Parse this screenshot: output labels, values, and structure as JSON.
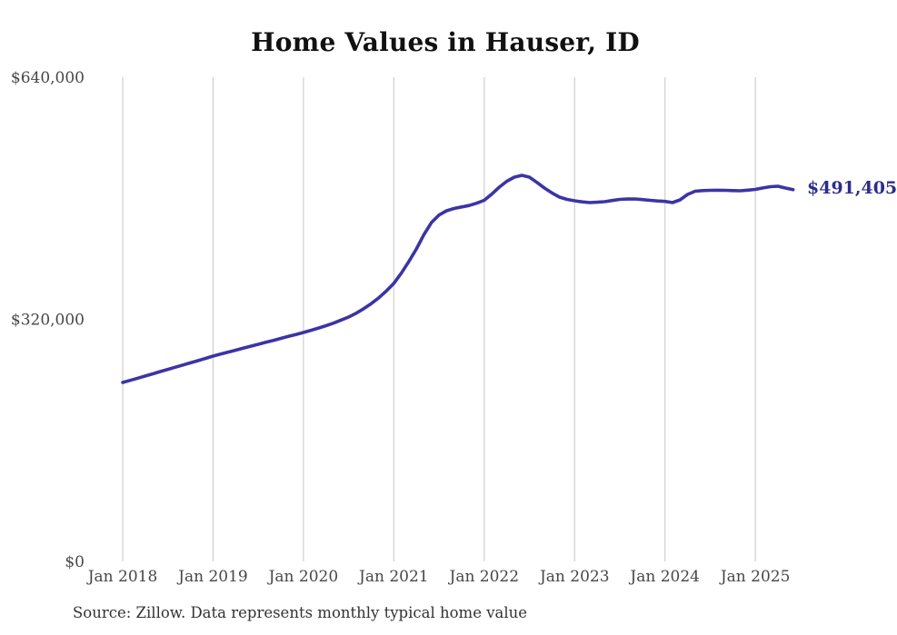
{
  "title": "Home Values in Hauser, ID",
  "source_note": "Source: Zillow. Data represents monthly typical home value",
  "colors": {
    "line": "#3c34a5",
    "end_label": "#2d2c8c",
    "grid": "#cfcfcf",
    "axis_text": "#474747",
    "title_text": "#111111",
    "source_text": "#333333",
    "background": "#ffffff"
  },
  "chart_data": {
    "type": "line",
    "title": "Home Values in Hauser, ID",
    "xlabel": "",
    "ylabel": "",
    "ylim": [
      0,
      640000
    ],
    "grid": "vertical-only",
    "legend": "none",
    "interval": "monthly",
    "x_tick_labels": [
      "Jan 2018",
      "Jan 2019",
      "Jan 2020",
      "Jan 2021",
      "Jan 2022",
      "Jan 2023",
      "Jan 2024",
      "Jan 2025"
    ],
    "y_ticks": [
      {
        "value": 0,
        "label": "$0"
      },
      {
        "value": 320000,
        "label": "$320,000"
      },
      {
        "value": 640000,
        "label": "$640,000"
      }
    ],
    "annotation": {
      "text": "$491,405",
      "x": "2025-06",
      "value": 491405
    },
    "series": [
      {
        "name": "Typical home value",
        "x": [
          "2018-01",
          "2018-02",
          "2018-03",
          "2018-04",
          "2018-05",
          "2018-06",
          "2018-07",
          "2018-08",
          "2018-09",
          "2018-10",
          "2018-11",
          "2018-12",
          "2019-01",
          "2019-02",
          "2019-03",
          "2019-04",
          "2019-05",
          "2019-06",
          "2019-07",
          "2019-08",
          "2019-09",
          "2019-10",
          "2019-11",
          "2019-12",
          "2020-01",
          "2020-02",
          "2020-03",
          "2020-04",
          "2020-05",
          "2020-06",
          "2020-07",
          "2020-08",
          "2020-09",
          "2020-10",
          "2020-11",
          "2020-12",
          "2021-01",
          "2021-02",
          "2021-03",
          "2021-04",
          "2021-05",
          "2021-06",
          "2021-07",
          "2021-08",
          "2021-09",
          "2021-10",
          "2021-11",
          "2021-12",
          "2022-01",
          "2022-02",
          "2022-03",
          "2022-04",
          "2022-05",
          "2022-06",
          "2022-07",
          "2022-08",
          "2022-09",
          "2022-10",
          "2022-11",
          "2022-12",
          "2023-01",
          "2023-02",
          "2023-03",
          "2023-04",
          "2023-05",
          "2023-06",
          "2023-07",
          "2023-08",
          "2023-09",
          "2023-10",
          "2023-11",
          "2023-12",
          "2024-01",
          "2024-02",
          "2024-03",
          "2024-04",
          "2024-05",
          "2024-06",
          "2024-07",
          "2024-08",
          "2024-09",
          "2024-10",
          "2024-11",
          "2024-12",
          "2025-01",
          "2025-02",
          "2025-03",
          "2025-04",
          "2025-05",
          "2025-06"
        ],
        "values": [
          236500,
          239300,
          242200,
          245100,
          248000,
          250900,
          253800,
          256700,
          259600,
          262500,
          265400,
          268400,
          271400,
          274000,
          276600,
          279200,
          281800,
          284400,
          287000,
          289600,
          292200,
          294800,
          297400,
          300000,
          302600,
          305500,
          308500,
          311600,
          315000,
          319000,
          323000,
          328000,
          334000,
          340800,
          348500,
          357500,
          367400,
          381000,
          396500,
          413000,
          432000,
          448000,
          457900,
          463500,
          466500,
          468500,
          470500,
          473500,
          477300,
          485500,
          494700,
          502500,
          507900,
          510300,
          507900,
          501000,
          493500,
          487000,
          481500,
          478500,
          476700,
          475200,
          474300,
          474800,
          475500,
          477000,
          478500,
          479000,
          479100,
          478300,
          477300,
          476400,
          475900,
          474300,
          477900,
          485100,
          489300,
          490100,
          490500,
          490600,
          490500,
          490200,
          489900,
          490700,
          491700,
          493600,
          495300,
          495900,
          493500,
          491405
        ]
      }
    ]
  }
}
